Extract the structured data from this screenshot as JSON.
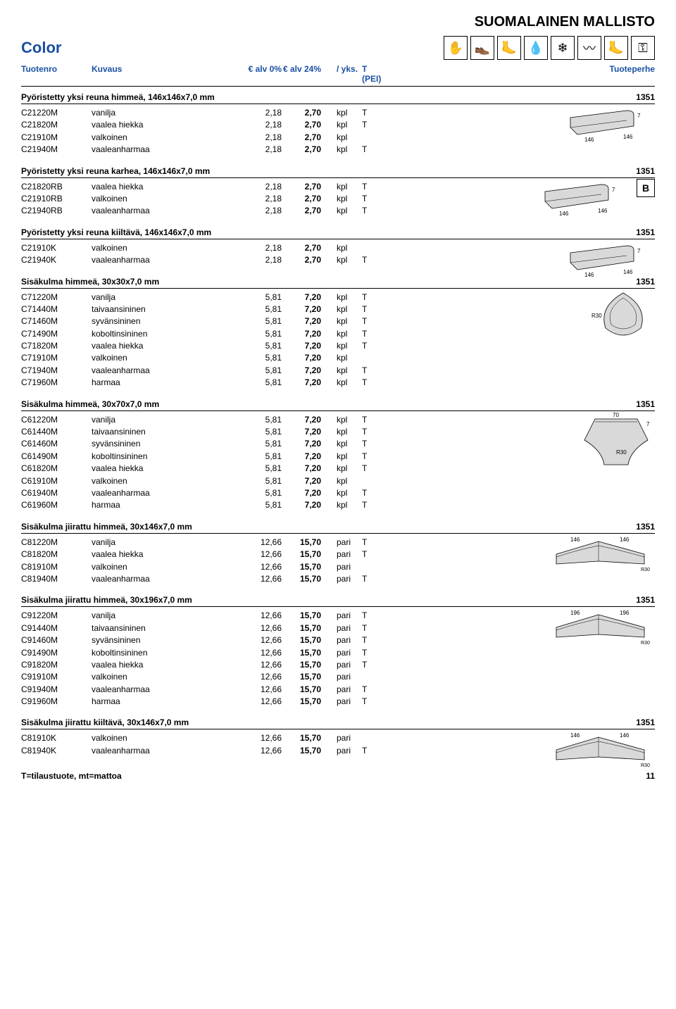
{
  "header": {
    "collection_title": "SUOMALAINEN MALLISTO",
    "brand": "Color",
    "columns": {
      "code": "Tuotenro",
      "desc": "Kuvaus",
      "p1": "€ alv 0%",
      "p2": "€ alv 24%",
      "unit": "/ yks.",
      "flag": "T (PEI)",
      "family": "Tuoteperhe"
    },
    "icons": [
      "glove-icon",
      "shoe-icon",
      "foot-icon",
      "drop-icon",
      "snowflake-icon",
      "wave-icon",
      "foot2-icon",
      "key-icon"
    ],
    "icon_glyphs": [
      "✋",
      "👞",
      "🦶",
      "💧",
      "❄",
      "〰",
      "🦶",
      "⚿"
    ]
  },
  "diagrams": {
    "tile_fill": "#d9d9d9",
    "stroke": "#000000",
    "bg": "#ffffff",
    "label_fontsize": 8
  },
  "sections": [
    {
      "title": "Pyöristetty yksi reuna himmeä, 146x146x7,0 mm",
      "family": "1351",
      "diagram": "rounded_tile_146",
      "rows": [
        {
          "code": "C21220M",
          "desc": "vanilja",
          "p1": "2,18",
          "p2": "2,70",
          "unit": "kpl",
          "flag": "T"
        },
        {
          "code": "C21820M",
          "desc": "vaalea hiekka",
          "p1": "2,18",
          "p2": "2,70",
          "unit": "kpl",
          "flag": "T"
        },
        {
          "code": "C21910M",
          "desc": "valkoinen",
          "p1": "2,18",
          "p2": "2,70",
          "unit": "kpl",
          "flag": ""
        },
        {
          "code": "C21940M",
          "desc": "vaaleanharmaa",
          "p1": "2,18",
          "p2": "2,70",
          "unit": "kpl",
          "flag": "T"
        }
      ]
    },
    {
      "title": "Pyöristetty yksi reuna karhea, 146x146x7,0 mm",
      "family": "1351",
      "diagram": "rounded_tile_146",
      "badge": "B",
      "rows": [
        {
          "code": "C21820RB",
          "desc": "vaalea hiekka",
          "p1": "2,18",
          "p2": "2,70",
          "unit": "kpl",
          "flag": "T"
        },
        {
          "code": "C21910RB",
          "desc": "valkoinen",
          "p1": "2,18",
          "p2": "2,70",
          "unit": "kpl",
          "flag": "T"
        },
        {
          "code": "C21940RB",
          "desc": "vaaleanharmaa",
          "p1": "2,18",
          "p2": "2,70",
          "unit": "kpl",
          "flag": "T"
        }
      ]
    },
    {
      "title": "Pyöristetty yksi reuna kiiltävä, 146x146x7,0 mm",
      "family": "1351",
      "diagram": "rounded_tile_146",
      "rows": [
        {
          "code": "C21910K",
          "desc": "valkoinen",
          "p1": "2,18",
          "p2": "2,70",
          "unit": "kpl",
          "flag": ""
        },
        {
          "code": "C21940K",
          "desc": "vaaleanharmaa",
          "p1": "2,18",
          "p2": "2,70",
          "unit": "kpl",
          "flag": "T"
        }
      ]
    },
    {
      "title": "Sisäkulma himmeä, 30x30x7,0 mm",
      "family": "1351",
      "diagram": "inner_corner_r30",
      "rows": [
        {
          "code": "C71220M",
          "desc": "vanilja",
          "p1": "5,81",
          "p2": "7,20",
          "unit": "kpl",
          "flag": "T"
        },
        {
          "code": "C71440M",
          "desc": "taivaansininen",
          "p1": "5,81",
          "p2": "7,20",
          "unit": "kpl",
          "flag": "T"
        },
        {
          "code": "C71460M",
          "desc": "syvänsininen",
          "p1": "5,81",
          "p2": "7,20",
          "unit": "kpl",
          "flag": "T"
        },
        {
          "code": "C71490M",
          "desc": "koboltinsininen",
          "p1": "5,81",
          "p2": "7,20",
          "unit": "kpl",
          "flag": "T"
        },
        {
          "code": "C71820M",
          "desc": "vaalea hiekka",
          "p1": "5,81",
          "p2": "7,20",
          "unit": "kpl",
          "flag": "T"
        },
        {
          "code": "C71910M",
          "desc": "valkoinen",
          "p1": "5,81",
          "p2": "7,20",
          "unit": "kpl",
          "flag": ""
        },
        {
          "code": "C71940M",
          "desc": "vaaleanharmaa",
          "p1": "5,81",
          "p2": "7,20",
          "unit": "kpl",
          "flag": "T"
        },
        {
          "code": "C71960M",
          "desc": "harmaa",
          "p1": "5,81",
          "p2": "7,20",
          "unit": "kpl",
          "flag": "T"
        }
      ]
    },
    {
      "title": "Sisäkulma himmeä, 30x70x7,0 mm",
      "family": "1351",
      "diagram": "inner_corner_70_r30",
      "rows": [
        {
          "code": "C61220M",
          "desc": "vanilja",
          "p1": "5,81",
          "p2": "7,20",
          "unit": "kpl",
          "flag": "T"
        },
        {
          "code": "C61440M",
          "desc": "taivaansininen",
          "p1": "5,81",
          "p2": "7,20",
          "unit": "kpl",
          "flag": "T"
        },
        {
          "code": "C61460M",
          "desc": "syvänsininen",
          "p1": "5,81",
          "p2": "7,20",
          "unit": "kpl",
          "flag": "T"
        },
        {
          "code": "C61490M",
          "desc": "koboltinsininen",
          "p1": "5,81",
          "p2": "7,20",
          "unit": "kpl",
          "flag": "T"
        },
        {
          "code": "C61820M",
          "desc": "vaalea hiekka",
          "p1": "5,81",
          "p2": "7,20",
          "unit": "kpl",
          "flag": "T"
        },
        {
          "code": "C61910M",
          "desc": "valkoinen",
          "p1": "5,81",
          "p2": "7,20",
          "unit": "kpl",
          "flag": ""
        },
        {
          "code": "C61940M",
          "desc": "vaaleanharmaa",
          "p1": "5,81",
          "p2": "7,20",
          "unit": "kpl",
          "flag": "T"
        },
        {
          "code": "C61960M",
          "desc": "harmaa",
          "p1": "5,81",
          "p2": "7,20",
          "unit": "kpl",
          "flag": "T"
        }
      ]
    },
    {
      "title": "Sisäkulma jiirattu himmeä, 30x146x7,0 mm",
      "family": "1351",
      "diagram": "mitred_146",
      "rows": [
        {
          "code": "C81220M",
          "desc": "vanilja",
          "p1": "12,66",
          "p2": "15,70",
          "unit": "pari",
          "flag": "T"
        },
        {
          "code": "C81820M",
          "desc": "vaalea hiekka",
          "p1": "12,66",
          "p2": "15,70",
          "unit": "pari",
          "flag": "T"
        },
        {
          "code": "C81910M",
          "desc": "valkoinen",
          "p1": "12,66",
          "p2": "15,70",
          "unit": "pari",
          "flag": ""
        },
        {
          "code": "C81940M",
          "desc": "vaaleanharmaa",
          "p1": "12,66",
          "p2": "15,70",
          "unit": "pari",
          "flag": "T"
        }
      ]
    },
    {
      "title": "Sisäkulma jiirattu himmeä, 30x196x7,0 mm",
      "family": "1351",
      "diagram": "mitred_196",
      "rows": [
        {
          "code": "C91220M",
          "desc": "vanilja",
          "p1": "12,66",
          "p2": "15,70",
          "unit": "pari",
          "flag": "T"
        },
        {
          "code": "C91440M",
          "desc": "taivaansininen",
          "p1": "12,66",
          "p2": "15,70",
          "unit": "pari",
          "flag": "T"
        },
        {
          "code": "C91460M",
          "desc": "syvänsininen",
          "p1": "12,66",
          "p2": "15,70",
          "unit": "pari",
          "flag": "T"
        },
        {
          "code": "C91490M",
          "desc": "koboltinsininen",
          "p1": "12,66",
          "p2": "15,70",
          "unit": "pari",
          "flag": "T"
        },
        {
          "code": "C91820M",
          "desc": "vaalea hiekka",
          "p1": "12,66",
          "p2": "15,70",
          "unit": "pari",
          "flag": "T"
        },
        {
          "code": "C91910M",
          "desc": "valkoinen",
          "p1": "12,66",
          "p2": "15,70",
          "unit": "pari",
          "flag": ""
        },
        {
          "code": "C91940M",
          "desc": "vaaleanharmaa",
          "p1": "12,66",
          "p2": "15,70",
          "unit": "pari",
          "flag": "T"
        },
        {
          "code": "C91960M",
          "desc": "harmaa",
          "p1": "12,66",
          "p2": "15,70",
          "unit": "pari",
          "flag": "T"
        }
      ]
    },
    {
      "title": "Sisäkulma jiirattu kiiltävä, 30x146x7,0 mm",
      "family": "1351",
      "diagram": "mitred_146",
      "rows": [
        {
          "code": "C81910K",
          "desc": "valkoinen",
          "p1": "12,66",
          "p2": "15,70",
          "unit": "pari",
          "flag": ""
        },
        {
          "code": "C81940K",
          "desc": "vaaleanharmaa",
          "p1": "12,66",
          "p2": "15,70",
          "unit": "pari",
          "flag": "T"
        }
      ]
    }
  ],
  "footer": {
    "note": "T=tilaustuote, mt=mattoa",
    "page": "11"
  }
}
